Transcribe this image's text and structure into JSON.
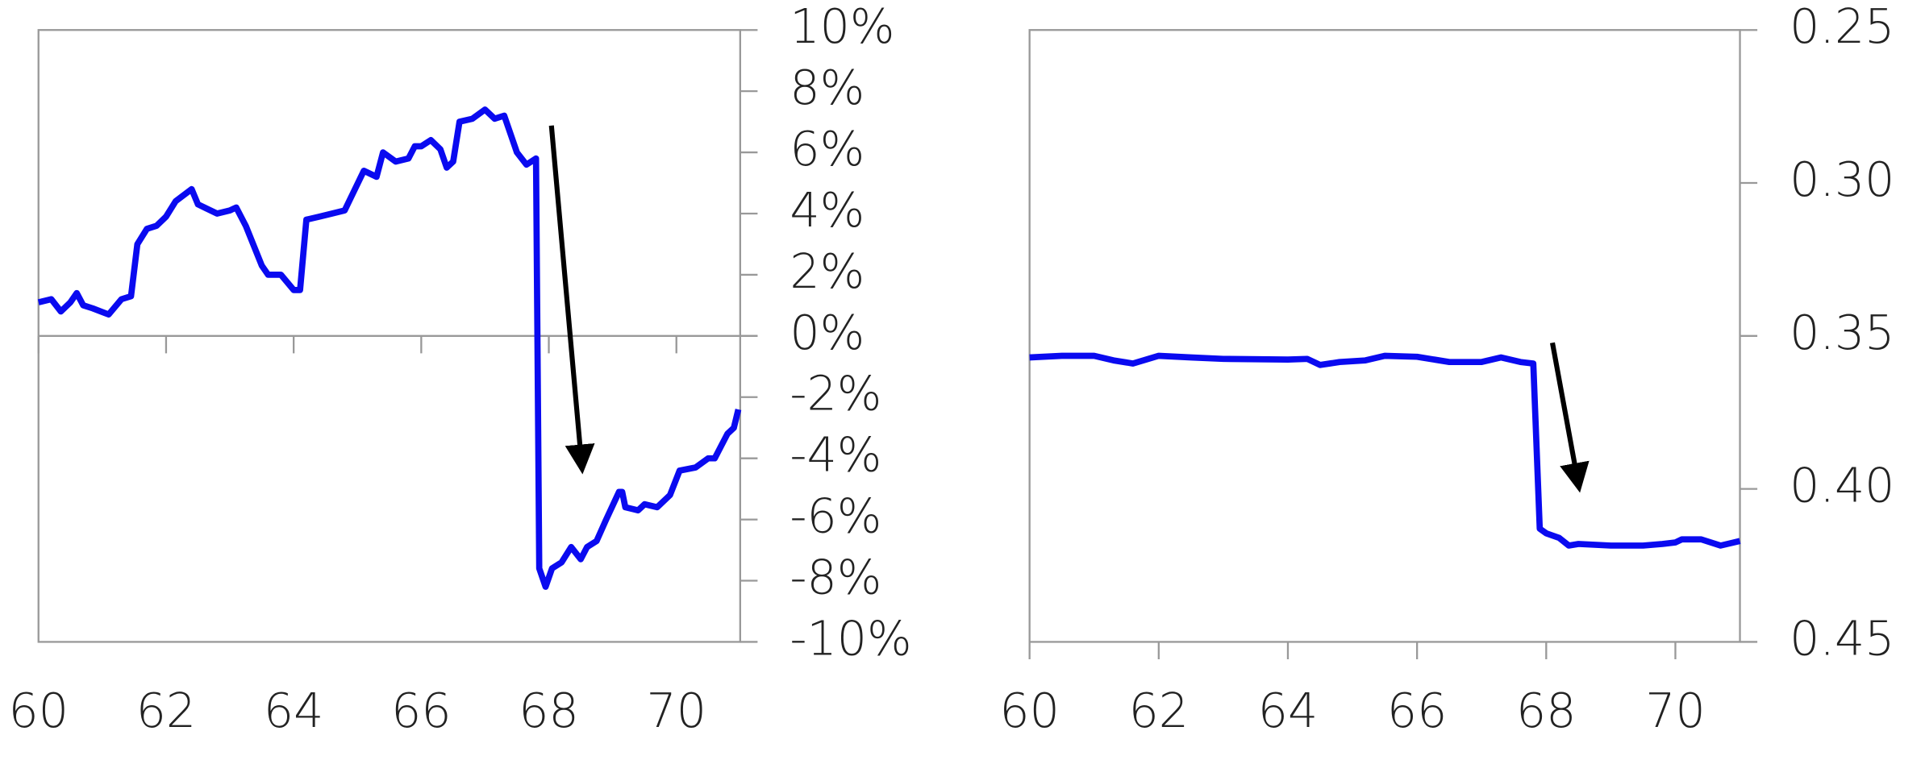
{
  "chart_data": [
    {
      "type": "line",
      "color": "#0a0af0",
      "zero_line": true,
      "y_inverted": false,
      "xlim": [
        60,
        71
      ],
      "xticks": [
        60,
        62,
        64,
        66,
        68,
        70
      ],
      "ylim": [
        -10,
        10
      ],
      "yticks": [
        {
          "value": 10,
          "label": "10%"
        },
        {
          "value": 8,
          "label": "8%"
        },
        {
          "value": 6,
          "label": "6%"
        },
        {
          "value": 4,
          "label": "4%"
        },
        {
          "value": 2,
          "label": "2%"
        },
        {
          "value": 0,
          "label": "0%"
        },
        {
          "value": -2,
          "label": "-2%"
        },
        {
          "value": -4,
          "label": "-4%"
        },
        {
          "value": -6,
          "label": "-6%"
        },
        {
          "value": -8,
          "label": "-8%"
        },
        {
          "value": -10,
          "label": "-10%"
        }
      ],
      "x": [
        60.0,
        60.2,
        60.35,
        60.5,
        60.6,
        60.7,
        60.85,
        61.1,
        61.3,
        61.45,
        61.55,
        61.7,
        61.85,
        62.0,
        62.15,
        62.4,
        62.5,
        62.8,
        63.0,
        63.1,
        63.25,
        63.5,
        63.6,
        63.8,
        64.0,
        64.1,
        64.2,
        64.4,
        64.6,
        64.8,
        65.1,
        65.3,
        65.4,
        65.6,
        65.8,
        65.9,
        66.0,
        66.15,
        66.3,
        66.4,
        66.5,
        66.6,
        66.8,
        67.0,
        67.15,
        67.3,
        67.5,
        67.65,
        67.8,
        67.85,
        67.95,
        68.05,
        68.2,
        68.35,
        68.5,
        68.6,
        68.75,
        68.9,
        69.1,
        69.15,
        69.2,
        69.4,
        69.5,
        69.7,
        69.9,
        70.05,
        70.3,
        70.5,
        70.6,
        70.8,
        70.9,
        70.97
      ],
      "values": [
        1.1,
        1.2,
        0.8,
        1.1,
        1.4,
        1.0,
        0.9,
        0.7,
        1.2,
        1.3,
        3.0,
        3.5,
        3.6,
        3.9,
        4.4,
        4.8,
        4.3,
        4.0,
        4.1,
        4.2,
        3.6,
        2.3,
        2.0,
        2.0,
        1.5,
        1.5,
        3.8,
        3.9,
        4.0,
        4.1,
        5.4,
        5.2,
        6.0,
        5.7,
        5.8,
        6.2,
        6.2,
        6.4,
        6.1,
        5.5,
        5.7,
        7.0,
        7.1,
        7.4,
        7.1,
        7.2,
        6.0,
        5.6,
        5.8,
        -7.6,
        -8.2,
        -7.6,
        -7.4,
        -6.9,
        -7.3,
        -6.9,
        -6.7,
        -6.0,
        -5.1,
        -5.1,
        -5.6,
        -5.7,
        -5.5,
        -5.6,
        -5.2,
        -4.4,
        -4.3,
        -4.0,
        -4.0,
        -3.2,
        -3.0,
        -2.4
      ]
    },
    {
      "type": "line",
      "color": "#0a0af0",
      "zero_line": false,
      "y_inverted": true,
      "xlim": [
        60,
        71
      ],
      "xticks": [
        60,
        62,
        64,
        66,
        68,
        70
      ],
      "ylim": [
        0.25,
        0.45
      ],
      "yticks": [
        0.25,
        {
          "value": 0.3,
          "label": "0.30"
        },
        0.35,
        {
          "value": 0.4,
          "label": "0.40"
        },
        0.45
      ],
      "x": [
        60.0,
        60.5,
        61.0,
        61.3,
        61.6,
        62.0,
        62.5,
        63.0,
        64.0,
        64.3,
        64.5,
        64.8,
        65.2,
        65.5,
        66.0,
        66.5,
        67.0,
        67.3,
        67.6,
        67.8,
        67.9,
        68.0,
        68.2,
        68.35,
        68.5,
        69.0,
        69.5,
        69.8,
        70.0,
        70.1,
        70.4,
        70.7,
        71.0
      ],
      "values": [
        0.357,
        0.3565,
        0.3565,
        0.358,
        0.359,
        0.3565,
        0.357,
        0.3575,
        0.3577,
        0.3575,
        0.3595,
        0.3585,
        0.358,
        0.3565,
        0.3568,
        0.3585,
        0.3585,
        0.357,
        0.3585,
        0.359,
        0.413,
        0.4145,
        0.416,
        0.4185,
        0.418,
        0.4185,
        0.4185,
        0.418,
        0.4175,
        0.4165,
        0.4165,
        0.4185,
        0.417
      ]
    }
  ]
}
